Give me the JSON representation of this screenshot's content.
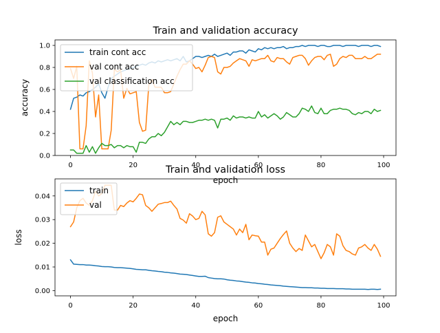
{
  "chart_data": [
    {
      "type": "line",
      "title": "Train and validation accuracy",
      "xlabel": "epoch",
      "ylabel": "accuracy",
      "xlim": [
        -4.95,
        103.95
      ],
      "ylim": [
        0.0,
        1.05
      ],
      "xticks": [
        0,
        20,
        40,
        60,
        80,
        100
      ],
      "yticks": [
        0.0,
        0.2,
        0.4,
        0.6,
        0.8,
        1.0
      ],
      "xtick_labels": [
        "0",
        "20",
        "40",
        "60",
        "80",
        "100"
      ],
      "ytick_labels": [
        "0.0",
        "0.2",
        "0.4",
        "0.6",
        "0.8",
        "1.0"
      ],
      "grid": false,
      "legend": "upper left",
      "series": [
        {
          "name": "train cont acc",
          "color": "#1f77b4",
          "values": [
            0.42,
            0.52,
            0.53,
            0.55,
            0.54,
            0.57,
            0.58,
            0.6,
            0.62,
            0.65,
            0.57,
            0.52,
            0.62,
            0.7,
            0.72,
            0.74,
            0.76,
            0.77,
            0.78,
            0.79,
            0.8,
            0.81,
            0.82,
            0.83,
            0.82,
            0.84,
            0.85,
            0.84,
            0.86,
            0.85,
            0.86,
            0.87,
            0.86,
            0.87,
            0.88,
            0.86,
            0.9,
            0.85,
            0.86,
            0.88,
            0.9,
            0.9,
            0.89,
            0.9,
            0.91,
            0.9,
            0.92,
            0.9,
            0.91,
            0.92,
            0.93,
            0.91,
            0.94,
            0.94,
            0.95,
            0.95,
            0.93,
            0.96,
            0.95,
            0.94,
            0.97,
            0.96,
            0.98,
            0.97,
            0.98,
            0.97,
            0.98,
            0.98,
            0.99,
            0.97,
            0.98,
            0.98,
            0.99,
            0.99,
            1.0,
            0.99,
            1.0,
            1.0,
            1.0,
            0.99,
            1.0,
            1.0,
            0.99,
            0.99,
            1.0,
            1.0,
            1.0,
            0.99,
            1.0,
            1.0,
            1.0,
            1.0,
            0.99,
            1.0,
            1.0,
            1.0,
            0.99,
            1.0,
            1.0,
            0.99
          ]
        },
        {
          "name": "val cont acc",
          "color": "#ff7f0e",
          "values": [
            0.79,
            0.7,
            0.81,
            0.06,
            0.06,
            0.27,
            0.86,
            0.75,
            0.35,
            0.55,
            0.06,
            0.06,
            0.06,
            0.23,
            0.78,
            0.76,
            0.78,
            0.52,
            0.61,
            0.56,
            0.57,
            0.58,
            0.3,
            0.22,
            0.23,
            0.64,
            0.69,
            0.62,
            0.62,
            0.62,
            0.57,
            0.57,
            0.58,
            0.65,
            0.72,
            0.78,
            0.83,
            0.83,
            0.86,
            0.83,
            0.79,
            0.8,
            0.76,
            0.82,
            0.89,
            0.9,
            0.89,
            0.76,
            0.74,
            0.8,
            0.8,
            0.81,
            0.84,
            0.86,
            0.88,
            0.87,
            0.86,
            0.81,
            0.87,
            0.86,
            0.87,
            0.88,
            0.88,
            0.91,
            0.86,
            0.85,
            0.89,
            0.88,
            0.88,
            0.85,
            0.83,
            0.89,
            0.9,
            0.91,
            0.91,
            0.88,
            0.82,
            0.86,
            0.89,
            0.9,
            0.9,
            0.87,
            0.91,
            0.92,
            0.81,
            0.83,
            0.88,
            0.9,
            0.89,
            0.91,
            0.91,
            0.88,
            0.88,
            0.88,
            0.9,
            0.88,
            0.88,
            0.9,
            0.92,
            0.92
          ]
        },
        {
          "name": "val classification acc",
          "color": "#2ca02c",
          "values": [
            0.05,
            0.05,
            0.02,
            0.02,
            0.02,
            0.09,
            0.03,
            0.08,
            0.02,
            0.07,
            0.11,
            0.09,
            0.09,
            0.1,
            0.07,
            0.09,
            0.09,
            0.07,
            0.09,
            0.08,
            0.08,
            0.03,
            0.12,
            0.12,
            0.11,
            0.15,
            0.17,
            0.17,
            0.2,
            0.18,
            0.21,
            0.26,
            0.31,
            0.28,
            0.3,
            0.28,
            0.31,
            0.31,
            0.3,
            0.3,
            0.31,
            0.32,
            0.32,
            0.33,
            0.32,
            0.33,
            0.32,
            0.25,
            0.33,
            0.33,
            0.34,
            0.32,
            0.36,
            0.34,
            0.35,
            0.35,
            0.34,
            0.35,
            0.34,
            0.34,
            0.4,
            0.35,
            0.37,
            0.34,
            0.36,
            0.38,
            0.36,
            0.33,
            0.35,
            0.39,
            0.37,
            0.35,
            0.35,
            0.38,
            0.43,
            0.42,
            0.4,
            0.45,
            0.39,
            0.38,
            0.43,
            0.38,
            0.38,
            0.41,
            0.42,
            0.42,
            0.43,
            0.42,
            0.42,
            0.41,
            0.38,
            0.37,
            0.39,
            0.38,
            0.4,
            0.4,
            0.38,
            0.42,
            0.4,
            0.41
          ]
        }
      ]
    },
    {
      "type": "line",
      "title": "Train and validation loss",
      "xlabel": "epoch",
      "ylabel": "loss",
      "xlim": [
        -4.95,
        103.95
      ],
      "ylim": [
        -0.0022,
        0.0472
      ],
      "xticks": [
        0,
        20,
        40,
        60,
        80,
        100
      ],
      "yticks": [
        0.0,
        0.01,
        0.02,
        0.03,
        0.04
      ],
      "xtick_labels": [
        "0",
        "20",
        "40",
        "60",
        "80",
        "100"
      ],
      "ytick_labels": [
        "0.00",
        "0.01",
        "0.02",
        "0.03",
        "0.04"
      ],
      "grid": false,
      "legend": "upper left",
      "series": [
        {
          "name": "train",
          "color": "#1f77b4",
          "values": [
            0.013,
            0.0112,
            0.0111,
            0.011,
            0.011,
            0.0108,
            0.0108,
            0.0107,
            0.0105,
            0.0104,
            0.0102,
            0.0101,
            0.0101,
            0.01,
            0.0098,
            0.0097,
            0.0097,
            0.0096,
            0.0095,
            0.0094,
            0.0092,
            0.009,
            0.0089,
            0.0088,
            0.0088,
            0.0086,
            0.0084,
            0.0083,
            0.0081,
            0.008,
            0.0078,
            0.0077,
            0.0075,
            0.0074,
            0.0072,
            0.007,
            0.0069,
            0.0068,
            0.0066,
            0.0064,
            0.0062,
            0.006,
            0.006,
            0.0061,
            0.0055,
            0.0053,
            0.0051,
            0.005,
            0.005,
            0.0049,
            0.0046,
            0.0044,
            0.0043,
            0.0041,
            0.004,
            0.0038,
            0.0036,
            0.0035,
            0.0033,
            0.0032,
            0.003,
            0.0029,
            0.0027,
            0.0026,
            0.0024,
            0.0023,
            0.0022,
            0.0021,
            0.0019,
            0.0018,
            0.0017,
            0.0016,
            0.0015,
            0.0014,
            0.0013,
            0.0013,
            0.0012,
            0.0012,
            0.0011,
            0.0011,
            0.001,
            0.001,
            0.0009,
            0.0009,
            0.0009,
            0.0008,
            0.0008,
            0.0008,
            0.0007,
            0.0007,
            0.0006,
            0.0006,
            0.0006,
            0.0006,
            0.0006,
            0.0005,
            0.0006,
            0.0006,
            0.0005,
            0.0006
          ]
        },
        {
          "name": "val",
          "color": "#ff7f0e",
          "values": [
            0.027,
            0.029,
            0.035,
            0.038,
            0.039,
            0.037,
            0.036,
            0.038,
            0.042,
            0.04,
            0.041,
            0.0445,
            0.0445,
            0.0445,
            0.034,
            0.034,
            0.036,
            0.0355,
            0.037,
            0.038,
            0.0375,
            0.039,
            0.0408,
            0.0405,
            0.036,
            0.035,
            0.0335,
            0.035,
            0.0365,
            0.0368,
            0.0372,
            0.0372,
            0.0378,
            0.036,
            0.0345,
            0.0305,
            0.0298,
            0.0285,
            0.0325,
            0.0315,
            0.03,
            0.0305,
            0.0335,
            0.032,
            0.024,
            0.023,
            0.0245,
            0.031,
            0.0316,
            0.029,
            0.028,
            0.027,
            0.026,
            0.0235,
            0.026,
            0.0245,
            0.028,
            0.0215,
            0.0235,
            0.0232,
            0.023,
            0.0205,
            0.0205,
            0.015,
            0.0175,
            0.018,
            0.02,
            0.022,
            0.0237,
            0.0252,
            0.02,
            0.018,
            0.0165,
            0.0178,
            0.017,
            0.0235,
            0.021,
            0.0185,
            0.0195,
            0.0165,
            0.0135,
            0.016,
            0.0195,
            0.0185,
            0.015,
            0.024,
            0.023,
            0.019,
            0.017,
            0.0165,
            0.0155,
            0.015,
            0.018,
            0.0185,
            0.0195,
            0.018,
            0.017,
            0.0195,
            0.0175,
            0.0145
          ]
        }
      ]
    }
  ]
}
